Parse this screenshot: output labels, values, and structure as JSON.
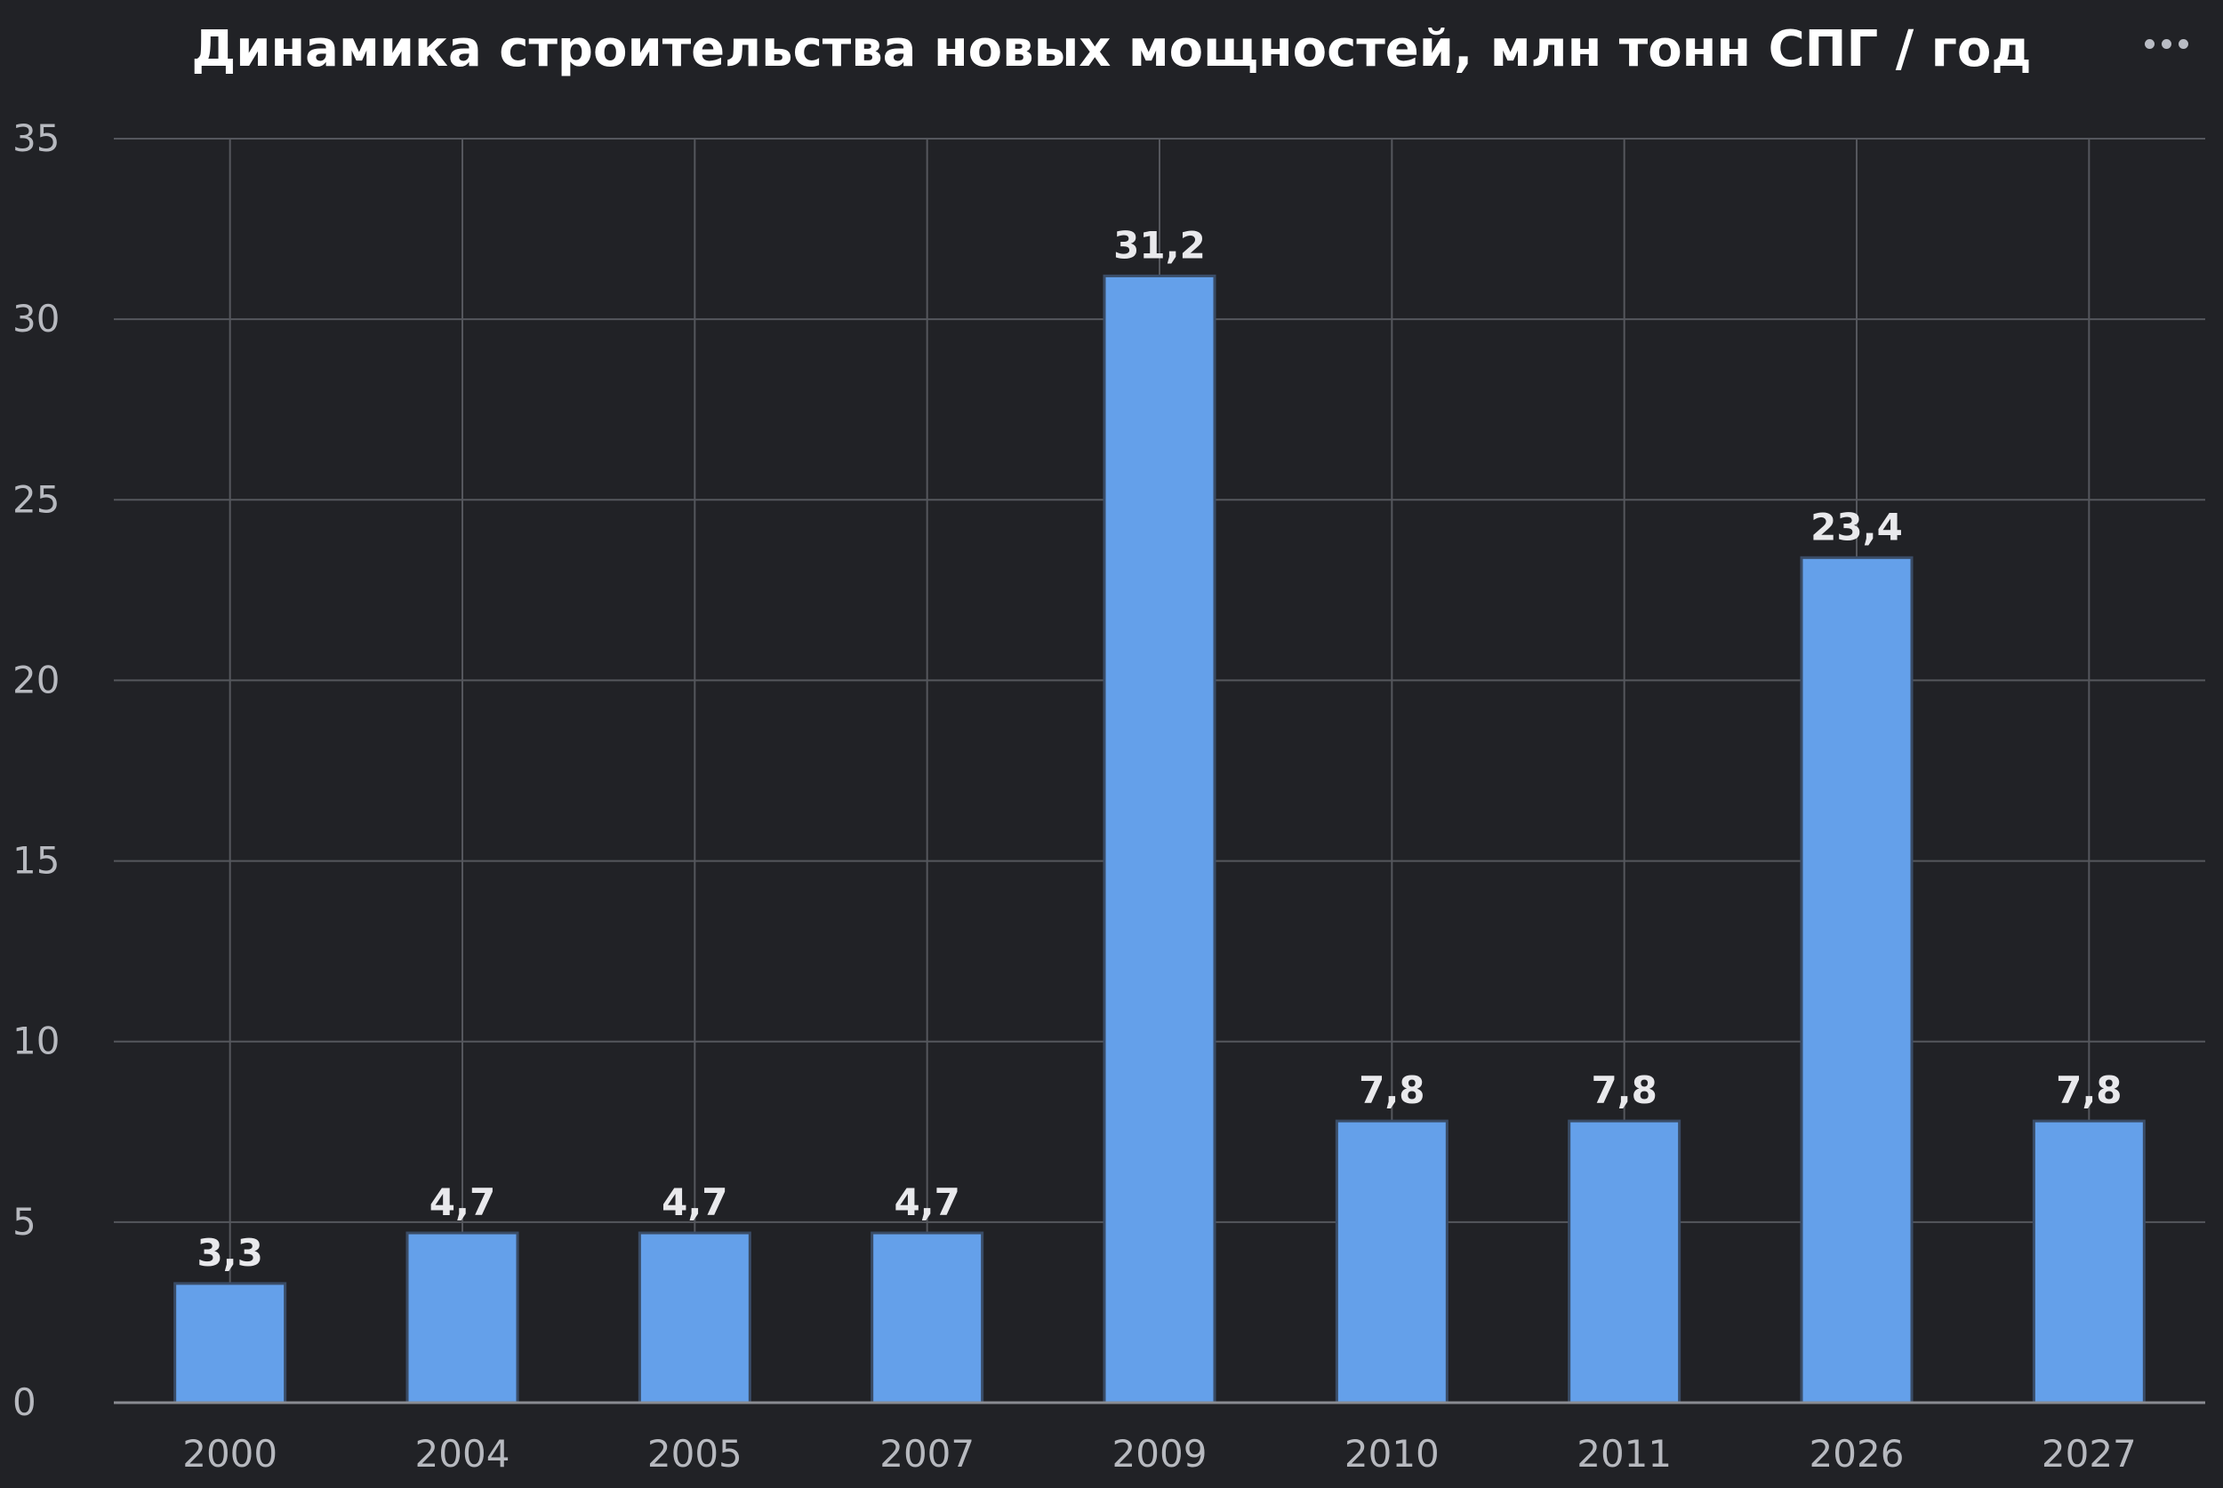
{
  "chart_data": {
    "type": "bar",
    "title": "Динамика строительства новых мощностей, млн тонн СПГ / год",
    "xlabel": "",
    "ylabel": "",
    "categories": [
      "2000",
      "2004",
      "2005",
      "2007",
      "2009",
      "2010",
      "2011",
      "2026",
      "2027"
    ],
    "values": [
      3.3,
      4.7,
      4.7,
      4.7,
      31.2,
      7.8,
      7.8,
      23.4,
      7.8
    ],
    "data_labels": [
      "3,3",
      "4,7",
      "4,7",
      "4,7",
      "31,2",
      "7,8",
      "7,8",
      "23,4",
      "7,8"
    ],
    "ylim": [
      0,
      35
    ],
    "yticks": [
      0,
      5,
      10,
      15,
      20,
      25,
      30,
      35
    ],
    "grid": true,
    "legend": "none",
    "colors": {
      "background": "#212226",
      "bar": "#64a0ea",
      "grid": "#55575d",
      "title": "#ffffff",
      "tick_text": "#b7b9bf",
      "data_label": "#e9e9ec"
    }
  },
  "menu": {
    "icon": "ellipsis-icon"
  }
}
